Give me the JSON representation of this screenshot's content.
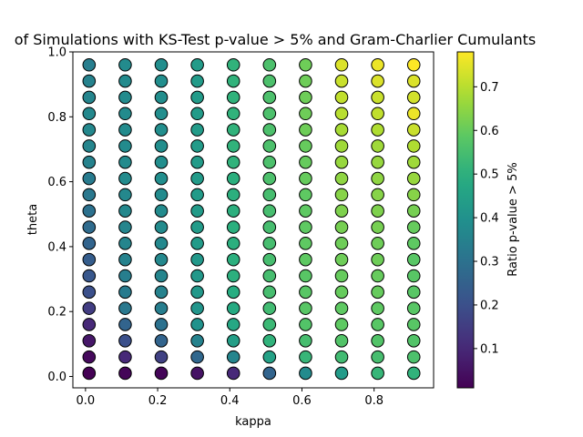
{
  "chart_data": {
    "type": "scatter",
    "title": "of Simulations with KS-Test p-value > 5% and Gram-Charlier Cumulants",
    "xlabel": "kappa",
    "ylabel": "theta",
    "colorbar_label": "Ratio p-value > 5%",
    "colormap": "viridis",
    "xlim": [
      -0.035,
      0.965
    ],
    "ylim": [
      -0.035,
      1.0
    ],
    "x_ticks": [
      0.0,
      0.2,
      0.4,
      0.6,
      0.8
    ],
    "x_tick_labels": [
      "0.0",
      "0.2",
      "0.4",
      "0.6",
      "0.8"
    ],
    "y_ticks": [
      0.0,
      0.2,
      0.4,
      0.6,
      0.8,
      1.0
    ],
    "y_tick_labels": [
      "0.0",
      "0.2",
      "0.4",
      "0.6",
      "0.8",
      "1.0"
    ],
    "colorbar_range": [
      0.01,
      0.78
    ],
    "colorbar_ticks": [
      0.1,
      0.2,
      0.3,
      0.4,
      0.5,
      0.6,
      0.7
    ],
    "colorbar_tick_labels": [
      "0.1",
      "0.2",
      "0.3",
      "0.4",
      "0.5",
      "0.6",
      "0.7"
    ],
    "kappa": [
      0.01,
      0.11,
      0.21,
      0.31,
      0.41,
      0.51,
      0.61,
      0.71,
      0.81,
      0.91
    ],
    "theta": [
      0.01,
      0.06,
      0.11,
      0.16,
      0.21,
      0.26,
      0.31,
      0.36,
      0.41,
      0.46,
      0.51,
      0.56,
      0.61,
      0.66,
      0.71,
      0.76,
      0.81,
      0.86,
      0.91,
      0.96
    ],
    "ratio": [
      [
        0.01,
        0.03,
        0.06,
        0.1,
        0.15,
        0.2,
        0.22,
        0.24,
        0.26,
        0.28,
        0.3,
        0.32,
        0.33,
        0.35,
        0.36,
        0.37,
        0.37,
        0.36,
        0.35,
        0.34
      ],
      [
        0.02,
        0.1,
        0.2,
        0.26,
        0.32,
        0.33,
        0.34,
        0.35,
        0.36,
        0.36,
        0.37,
        0.37,
        0.38,
        0.38,
        0.38,
        0.38,
        0.38,
        0.38,
        0.38,
        0.38
      ],
      [
        0.02,
        0.16,
        0.26,
        0.3,
        0.34,
        0.35,
        0.36,
        0.37,
        0.37,
        0.38,
        0.38,
        0.38,
        0.39,
        0.39,
        0.39,
        0.39,
        0.39,
        0.39,
        0.39,
        0.39
      ],
      [
        0.05,
        0.27,
        0.35,
        0.4,
        0.41,
        0.42,
        0.42,
        0.42,
        0.43,
        0.43,
        0.43,
        0.43,
        0.43,
        0.43,
        0.43,
        0.43,
        0.43,
        0.43,
        0.43,
        0.43
      ],
      [
        0.1,
        0.36,
        0.44,
        0.47,
        0.48,
        0.49,
        0.5,
        0.5,
        0.5,
        0.5,
        0.5,
        0.5,
        0.5,
        0.51,
        0.51,
        0.51,
        0.51,
        0.51,
        0.51,
        0.51
      ],
      [
        0.26,
        0.45,
        0.51,
        0.53,
        0.54,
        0.55,
        0.55,
        0.55,
        0.55,
        0.55,
        0.55,
        0.55,
        0.56,
        0.56,
        0.56,
        0.56,
        0.56,
        0.56,
        0.56,
        0.56
      ],
      [
        0.38,
        0.52,
        0.55,
        0.57,
        0.58,
        0.58,
        0.58,
        0.59,
        0.59,
        0.59,
        0.59,
        0.59,
        0.6,
        0.6,
        0.6,
        0.61,
        0.61,
        0.61,
        0.61,
        0.61
      ],
      [
        0.43,
        0.54,
        0.57,
        0.59,
        0.59,
        0.6,
        0.6,
        0.61,
        0.61,
        0.62,
        0.63,
        0.64,
        0.65,
        0.66,
        0.67,
        0.68,
        0.7,
        0.71,
        0.72,
        0.74
      ],
      [
        0.52,
        0.55,
        0.57,
        0.58,
        0.59,
        0.6,
        0.6,
        0.61,
        0.61,
        0.62,
        0.63,
        0.64,
        0.65,
        0.66,
        0.67,
        0.69,
        0.71,
        0.72,
        0.74,
        0.76
      ],
      [
        0.51,
        0.56,
        0.57,
        0.58,
        0.58,
        0.58,
        0.58,
        0.58,
        0.59,
        0.6,
        0.62,
        0.64,
        0.66,
        0.67,
        0.69,
        0.72,
        0.76,
        0.73,
        0.74,
        0.78
      ]
    ]
  }
}
